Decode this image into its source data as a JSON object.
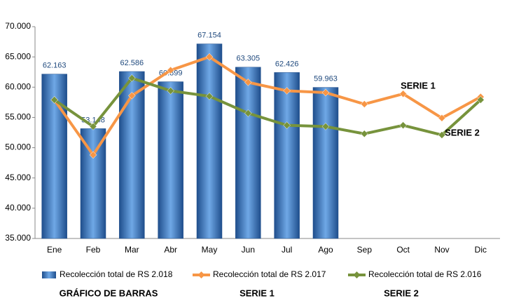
{
  "chart_data": {
    "type": "bar",
    "categories": [
      "Ene",
      "Feb",
      "Mar",
      "Abr",
      "May",
      "Jun",
      "Jul",
      "Ago",
      "Sep",
      "Oct",
      "Nov",
      "Dic"
    ],
    "series": [
      {
        "name": "Recolección total de RS 2.018",
        "type": "bar",
        "color": "#3a75c0",
        "values": [
          62163,
          53148,
          62586,
          60899,
          67154,
          63305,
          62426,
          59963,
          null,
          null,
          null,
          null
        ],
        "value_labels": [
          "62.163",
          "53.148",
          "62.586",
          "60.899",
          "67.154",
          "63.305",
          "62.426",
          "59.963",
          null,
          null,
          null,
          null
        ]
      },
      {
        "name": "Recolección total de RS 2.017",
        "type": "line",
        "color": "#f79646",
        "values": [
          57900,
          48800,
          58600,
          62800,
          65000,
          60800,
          59400,
          59100,
          57200,
          58900,
          54900,
          58400
        ]
      },
      {
        "name": "Recolección total de RS 2.016",
        "type": "line",
        "color": "#77933c",
        "values": [
          57900,
          53500,
          61500,
          59400,
          58500,
          55700,
          53700,
          53500,
          52300,
          53700,
          52100,
          57900
        ]
      }
    ],
    "ylim": [
      35000,
      70000
    ],
    "yticks": [
      {
        "value": 35000,
        "label": "35.000"
      },
      {
        "value": 40000,
        "label": "40.000"
      },
      {
        "value": 45000,
        "label": "45.000"
      },
      {
        "value": 50000,
        "label": "50.000"
      },
      {
        "value": 55000,
        "label": "55.000"
      },
      {
        "value": 60000,
        "label": "60.000"
      },
      {
        "value": 65000,
        "label": "65.000"
      },
      {
        "value": 70000,
        "label": "70.000"
      }
    ],
    "grid": false,
    "legend": "bottom",
    "annotations": [
      "SERIE 1",
      "SERIE 2"
    ],
    "footer_labels": [
      "GRÁFICO DE BARRAS",
      "SERIE 1",
      "SERIE 2"
    ]
  }
}
